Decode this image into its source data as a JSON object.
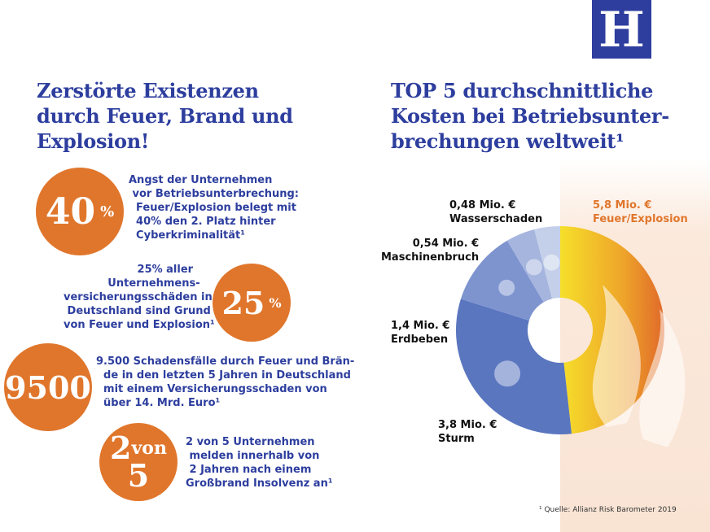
{
  "logo": "H",
  "left": {
    "title": [
      "Zerstörte Existenzen",
      "durch Feuer, Brand und",
      "Explosion!"
    ],
    "facts": [
      {
        "big": "40",
        "unit": "%",
        "text": "Angst der Unternehmen\n vor Betriebsunterbrechung:\n  Feuer/Explosion belegt mit\n  40% den 2. Platz hinter\n  Cyberkriminalität¹"
      },
      {
        "big": "25",
        "unit": "%",
        "text": "                    25% aller\n            Unternehmens-\nversicherungsschäden in\n Deutschland sind Grund\nvon Feuer und Explosion¹"
      },
      {
        "big": "9500",
        "unit": "",
        "text": "9.500 Schadensfälle durch Feuer und Brän-\n  de in den letzten 5 Jahren in Deutschland\n  mit einem Versicherungsschaden von\n  über 14. Mrd. Euro¹"
      },
      {
        "big": "2",
        "unit": "von",
        "extra": "5",
        "text": "2 von 5 Unternehmen\n melden innerhalb von\n 2 Jahren nach einem\nGroßbrand Insolvenz an¹"
      }
    ]
  },
  "chart_data": {
    "type": "pie",
    "donut": true,
    "title": [
      "TOP 5 durchschnittliche",
      "Kosten bei Betriebsunter-",
      "brechungen weltweit¹"
    ],
    "unit": "Mio. €",
    "slices": [
      {
        "label": "Feuer/Explosion",
        "value": 5.8,
        "value_label": "5,8 Mio. €",
        "color": "#eea52a",
        "icon": "flame-icon"
      },
      {
        "label": "Sturm",
        "value": 3.8,
        "value_label": "3,8 Mio. €",
        "color": "#5a76bf",
        "icon": "tornado-icon"
      },
      {
        "label": "Erdbeben",
        "value": 1.4,
        "value_label": "1,4 Mio. €",
        "color": "#7e94cf",
        "icon": "earthquake-building-icon"
      },
      {
        "label": "Maschinenbruch",
        "value": 0.54,
        "value_label": "0,54 Mio. €",
        "color": "#a6b5de",
        "icon": "gears-icon"
      },
      {
        "label": "Wasserschaden",
        "value": 0.48,
        "value_label": "0,48 Mio. €",
        "color": "#c4cfea",
        "icon": "water-drops-icon"
      }
    ]
  },
  "footnote": "¹ Quelle: Allianz Risk Barometer 2019",
  "colors": {
    "blue": "#2d3e9e",
    "orange": "#e0762c",
    "fire_label": "#e0762c"
  }
}
